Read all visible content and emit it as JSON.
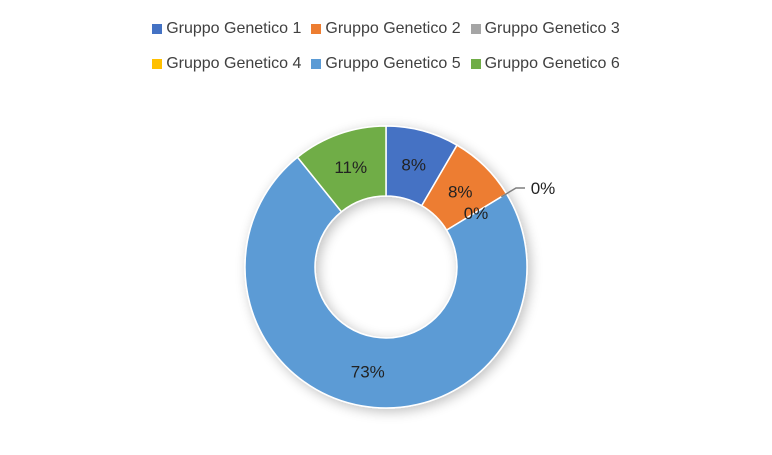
{
  "chart_data": {
    "type": "pie",
    "variant": "donut",
    "categories": [
      "Gruppo Genetico 1",
      "Gruppo Genetico 2",
      "Gruppo Genetico 3",
      "Gruppo Genetico 4",
      "Gruppo Genetico 5",
      "Gruppo Genetico 6"
    ],
    "values": [
      8.4,
      7.9,
      0,
      0,
      72.9,
      10.8
    ],
    "labels": [
      "8%",
      "8%",
      "0%",
      "0%",
      "73%",
      "11%"
    ],
    "colors": [
      "#4472C4",
      "#ED7D31",
      "#A5A5A5",
      "#FFC000",
      "#5B9BD5",
      "#70AD47"
    ],
    "legend_position": "top",
    "title": ""
  }
}
